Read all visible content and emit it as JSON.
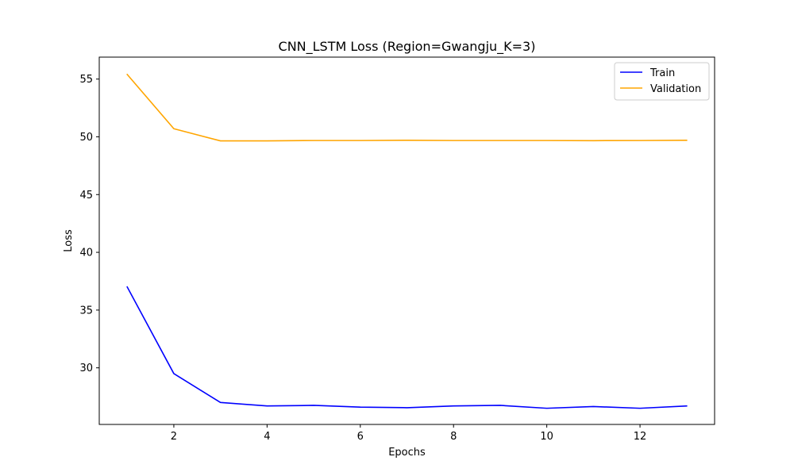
{
  "chart_data": {
    "type": "line",
    "title": "CNN_LSTM Loss (Region=Gwangju_K=3)",
    "xlabel": "Epochs",
    "ylabel": "Loss",
    "x": [
      1,
      2,
      3,
      4,
      5,
      6,
      7,
      8,
      9,
      10,
      11,
      12,
      13
    ],
    "xticks": [
      2,
      4,
      6,
      8,
      10,
      12
    ],
    "yticks": [
      30,
      35,
      40,
      45,
      50,
      55
    ],
    "xlim": [
      0.4,
      13.6
    ],
    "ylim": [
      25.1,
      56.9
    ],
    "grid": false,
    "legend_position": "top-right",
    "series": [
      {
        "name": "Train",
        "color": "#0000ff",
        "values": [
          37.0,
          29.5,
          27.0,
          26.7,
          26.75,
          26.6,
          26.55,
          26.7,
          26.75,
          26.5,
          26.65,
          26.5,
          26.7
        ]
      },
      {
        "name": "Validation",
        "color": "#ffa500",
        "values": [
          55.4,
          50.7,
          49.65,
          49.65,
          49.68,
          49.68,
          49.7,
          49.68,
          49.68,
          49.68,
          49.67,
          49.68,
          49.7
        ]
      }
    ]
  }
}
